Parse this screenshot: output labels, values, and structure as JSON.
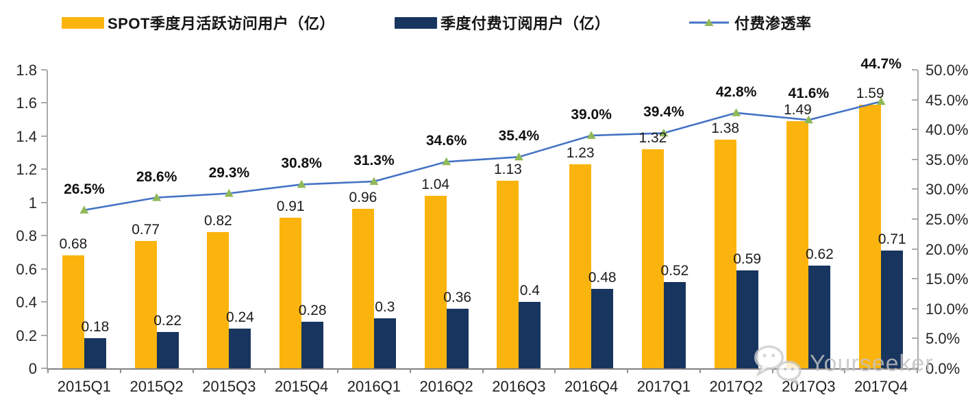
{
  "legend": {
    "items": [
      {
        "label": "SPOT季度月活跃访问用户（亿）",
        "swatch": "bar",
        "color": "#FBB40E"
      },
      {
        "label": "季度付费订阅用户（亿）",
        "swatch": "bar",
        "color": "#17355E"
      },
      {
        "label": "付费渗透率",
        "swatch": "line",
        "color": "#4472C4",
        "marker_color": "#8FB957"
      }
    ]
  },
  "chart_data": {
    "type": "bar",
    "subtype": "grouped-bars-with-line",
    "title": "",
    "categories": [
      "2015Q1",
      "2015Q2",
      "2015Q3",
      "2015Q4",
      "2016Q1",
      "2016Q2",
      "2016Q3",
      "2016Q4",
      "2017Q1",
      "2017Q2",
      "2017Q3",
      "2017Q4"
    ],
    "series": [
      {
        "name": "SPOT季度月活跃访问用户（亿）",
        "type": "bar",
        "axis": "left",
        "color": "#FBB40E",
        "values": [
          0.68,
          0.77,
          0.82,
          0.91,
          0.96,
          1.04,
          1.13,
          1.23,
          1.32,
          1.38,
          1.49,
          1.59
        ],
        "labels": [
          "0.68",
          "0.77",
          "0.82",
          "0.91",
          "0.96",
          "1.04",
          "1.13",
          "1.23",
          "1.32",
          "1.38",
          "1.49",
          "1.59"
        ]
      },
      {
        "name": "季度付费订阅用户（亿）",
        "type": "bar",
        "axis": "left",
        "color": "#17355E",
        "values": [
          0.18,
          0.22,
          0.24,
          0.28,
          0.3,
          0.36,
          0.4,
          0.48,
          0.52,
          0.59,
          0.62,
          0.71
        ],
        "labels": [
          "0.18",
          "0.22",
          "0.24",
          "0.28",
          "0.3",
          "0.36",
          "0.4",
          "0.48",
          "0.52",
          "0.59",
          "0.62",
          "0.71"
        ]
      },
      {
        "name": "付费渗透率",
        "type": "line",
        "axis": "right",
        "color": "#4472C4",
        "marker": "triangle",
        "marker_color": "#8FB957",
        "values": [
          26.5,
          28.6,
          29.3,
          30.8,
          31.3,
          34.6,
          35.4,
          39.0,
          39.4,
          42.8,
          41.6,
          44.7
        ],
        "labels": [
          "26.5%",
          "28.6%",
          "29.3%",
          "30.8%",
          "31.3%",
          "34.6%",
          "35.4%",
          "39.0%",
          "39.4%",
          "42.8%",
          "41.6%",
          "44.7%"
        ]
      }
    ],
    "left_axis": {
      "min": 0,
      "max": 1.8,
      "tick_labels": [
        "1.8",
        "1.6",
        "1.4",
        "1.2",
        "1",
        "0.8",
        "0.6",
        "0.4",
        "0.2",
        "0"
      ]
    },
    "right_axis": {
      "min": 0,
      "max": 50,
      "unit": "%",
      "tick_labels": [
        "50.0%",
        "45.0%",
        "40.0%",
        "35.0%",
        "30.0%",
        "25.0%",
        "20.0%",
        "15.0%",
        "10.0%",
        "5.0%",
        "0.0%"
      ]
    },
    "grid": false,
    "legend_position": "top"
  },
  "watermark": {
    "text": "Yourseeker",
    "icon": "wechat-icon"
  },
  "colors": {
    "axis_line": "#ABABAB",
    "bottom_axis": "#808080",
    "label_text": "#1C1C1C"
  }
}
